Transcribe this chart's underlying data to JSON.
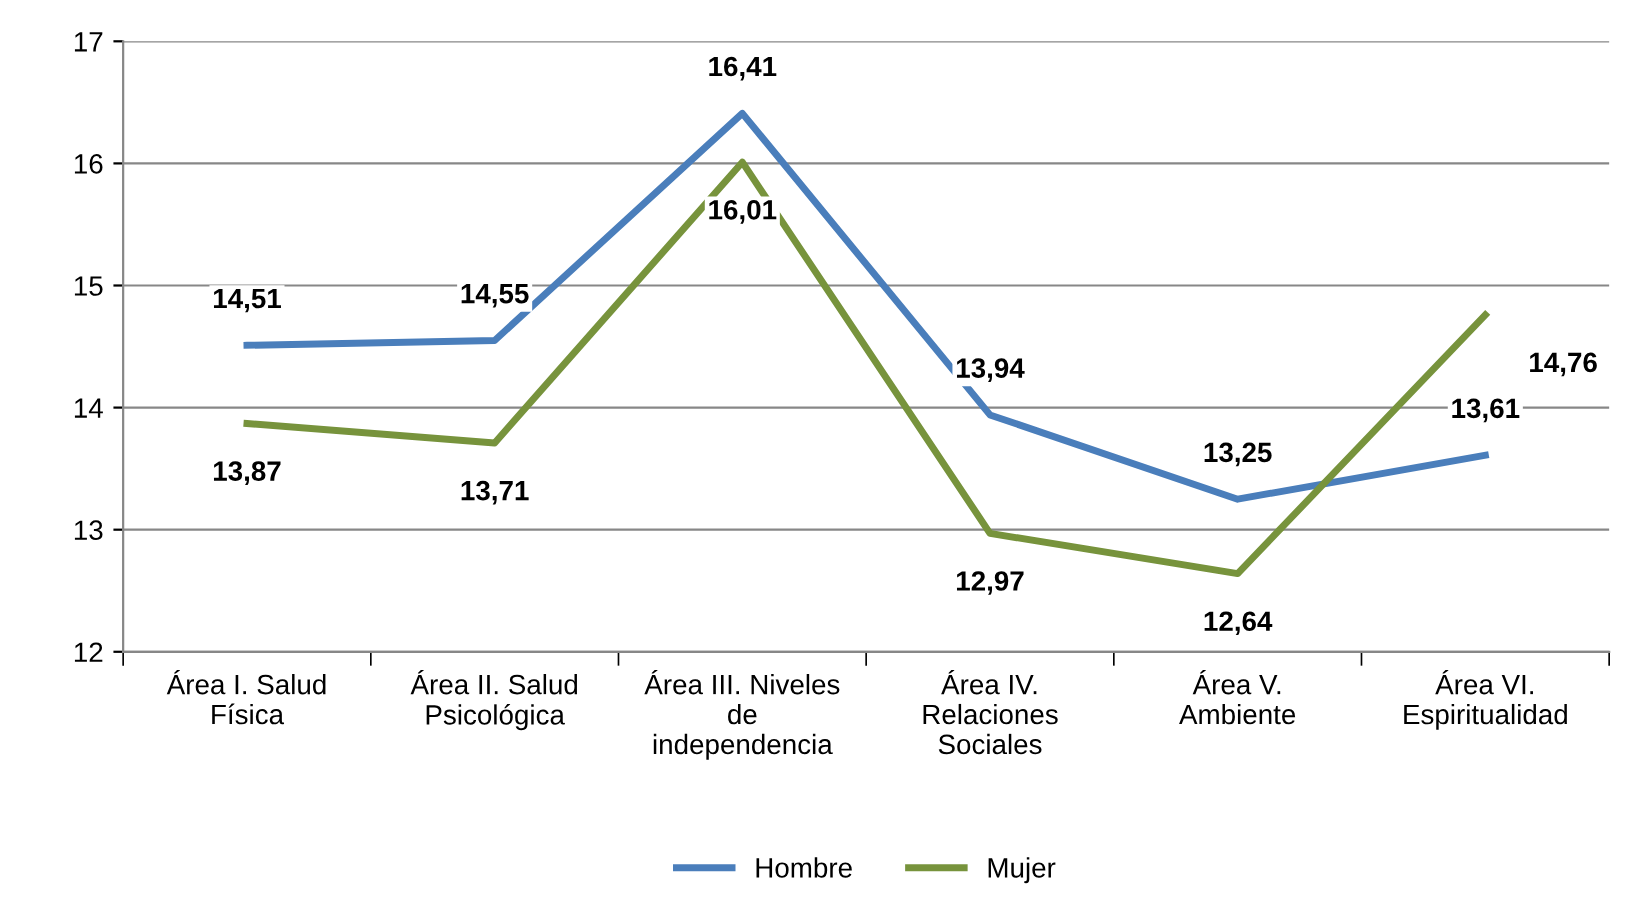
{
  "chart_data": {
    "type": "line",
    "categories": [
      "Área I. Salud\nFísica",
      "Área II. Salud\nPsicológica",
      "Área III. Niveles\nde\nindependencia",
      "Área IV.\nRelaciones\nSociales",
      "Área V.\nAmbiente",
      "Área VI.\nEspiritualidad"
    ],
    "series": [
      {
        "name": "Hombre",
        "color": "#4a7ebb",
        "values": [
          14.51,
          14.55,
          16.41,
          13.94,
          13.25,
          13.61
        ],
        "value_labels": [
          "14,51",
          "14,55",
          "16,41",
          "13,94",
          "13,25",
          "13,61"
        ]
      },
      {
        "name": "Mujer",
        "color": "#77933c",
        "values": [
          13.87,
          13.71,
          16.01,
          12.97,
          12.64,
          14.76
        ],
        "value_labels": [
          "13,87",
          "13,71",
          "16,01",
          "12,97",
          "12,64",
          "14,76"
        ]
      }
    ],
    "ylim": [
      12,
      17
    ],
    "yticks": [
      12,
      13,
      14,
      15,
      16,
      17
    ],
    "grid": "y",
    "legend": "bottom",
    "marker": "none",
    "line_style": "solid"
  }
}
